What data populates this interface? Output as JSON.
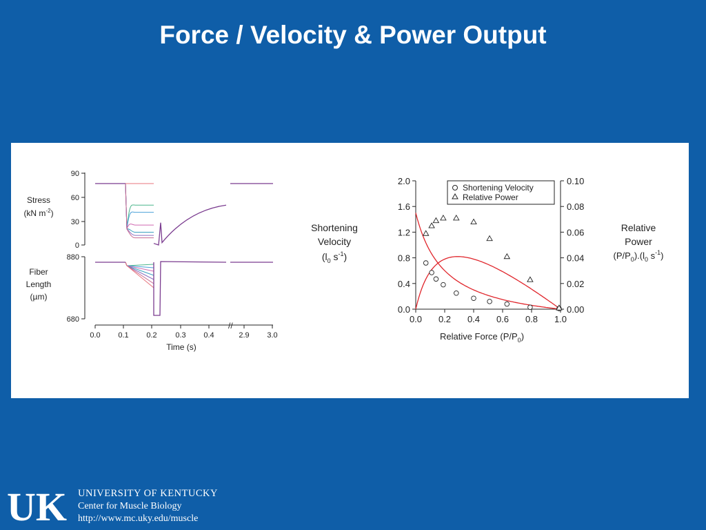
{
  "slide": {
    "title": "Force / Velocity & Power Output"
  },
  "footer": {
    "logo_text": "UK",
    "university": "UNIVERSITY OF KENTUCKY",
    "center": "Center for Muscle Biology",
    "url": "http://www.mc.uky.edu/muscle"
  },
  "colors": {
    "background": "#0f5ea8",
    "panel": "#ffffff",
    "fit_line": "#e0252b",
    "trace_purple": "#7a3b8f"
  },
  "chart_data": [
    {
      "type": "line",
      "panel": "left",
      "xlabel": "Time (s)",
      "x_ticks": [
        "0.0",
        "0.1",
        "0.2",
        "0.3",
        "0.4",
        "2.9",
        "3.0"
      ],
      "axis_break": "//",
      "stress": {
        "ylabel_lines": [
          "Stress",
          "(kN m",
          "-2",
          ")"
        ],
        "y_ticks": [
          "90",
          "60",
          "30",
          "0"
        ],
        "ylim": [
          0,
          90
        ],
        "series": [
          {
            "color": "#e8747c",
            "plateau": 77
          },
          {
            "color": "#48b58a",
            "plateau": 50
          },
          {
            "color": "#4aa0d8",
            "plateau": 41
          },
          {
            "color": "#d068b0",
            "plateau": 25
          },
          {
            "color": "#3aa0c0",
            "plateau": 16
          },
          {
            "color": "#8a70c0",
            "plateau": 12
          },
          {
            "color": "#c86890",
            "plateau": 9
          }
        ]
      },
      "fiber_length": {
        "ylabel_lines": [
          "Fiber",
          "Length",
          "(µm)"
        ],
        "y_ticks": [
          "880",
          "680"
        ],
        "ylim": [
          680,
          880
        ]
      }
    },
    {
      "type": "scatter",
      "panel": "right",
      "xlabel": "Relative Force (P/P",
      "xlabel_sub": "0",
      "xlabel_end": ")",
      "x_ticks": [
        "0.0",
        "0.2",
        "0.4",
        "0.6",
        "0.8",
        "1.0"
      ],
      "xlim": [
        0,
        1
      ],
      "left_axis": {
        "label_lines": [
          "Shortening",
          "Velocity"
        ],
        "label_unit": "(l",
        "label_unit_sub": "0",
        "label_unit_rest": " s",
        "label_unit_sup": "-1",
        "label_unit_end": ")",
        "ticks": [
          "2.0",
          "1.6",
          "1.2",
          "0.8",
          "0.4",
          "0.0"
        ],
        "ylim": [
          0,
          2.0
        ]
      },
      "right_axis": {
        "label_lines": [
          "Relative",
          "Power"
        ],
        "label_unit": "(P/P",
        "label_unit_sub": "0",
        "label_unit_mid": ").(l",
        "label_unit_sub2": "0",
        "label_unit_rest": " s",
        "label_unit_sup": "-1",
        "label_unit_end": ")",
        "ticks": [
          "0.10",
          "0.08",
          "0.06",
          "0.04",
          "0.02",
          "0.00"
        ],
        "ylim": [
          0,
          0.1
        ]
      },
      "legend": {
        "position": "top-right",
        "entries": [
          "Shortening Velocity",
          "Relative Power"
        ]
      },
      "series": [
        {
          "name": "Shortening Velocity",
          "marker": "circle",
          "axis": "left",
          "x": [
            0.07,
            0.11,
            0.14,
            0.19,
            0.28,
            0.4,
            0.51,
            0.63,
            0.79,
            0.99
          ],
          "y": [
            0.72,
            0.57,
            0.47,
            0.38,
            0.25,
            0.17,
            0.12,
            0.08,
            0.03,
            0.01
          ]
        },
        {
          "name": "Relative Power",
          "marker": "triangle",
          "axis": "right",
          "x": [
            0.07,
            0.11,
            0.14,
            0.19,
            0.28,
            0.4,
            0.51,
            0.63,
            0.79,
            0.99
          ],
          "y": [
            0.059,
            0.065,
            0.069,
            0.071,
            0.071,
            0.068,
            0.055,
            0.041,
            0.023,
            0.001
          ]
        }
      ]
    }
  ]
}
